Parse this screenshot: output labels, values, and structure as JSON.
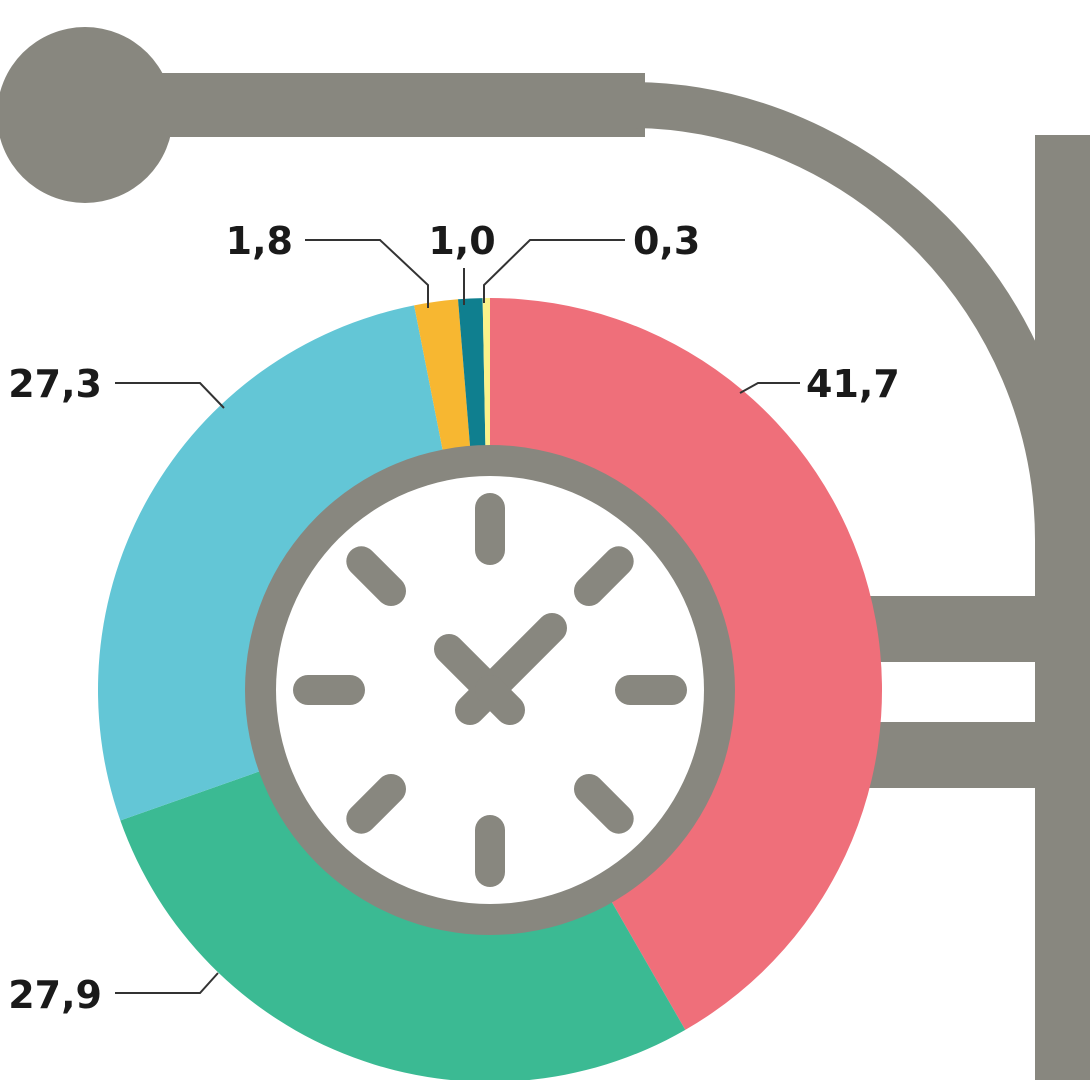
{
  "chart_data": {
    "type": "pie",
    "variant": "donut",
    "title": "",
    "slices": [
      {
        "value": 41.7,
        "label": "41,7",
        "color": "#ef6f7a"
      },
      {
        "value": 27.9,
        "label": "27,9",
        "color": "#3bba93"
      },
      {
        "value": 27.3,
        "label": "27,3",
        "color": "#63c6d6"
      },
      {
        "value": 1.8,
        "label": "1,8",
        "color": "#f7b731"
      },
      {
        "value": 1.0,
        "label": "1,0",
        "color": "#0f7f8f"
      },
      {
        "value": 0.3,
        "label": "0,3",
        "color": "#fbf28a"
      }
    ],
    "legend": "none",
    "start": "top",
    "direction": "clockwise"
  },
  "decoration": {
    "bracket_color": "#88877f",
    "center_icon": "clock-icon",
    "clock_face_color": "#ffffff",
    "clock_color": "#88877f"
  }
}
